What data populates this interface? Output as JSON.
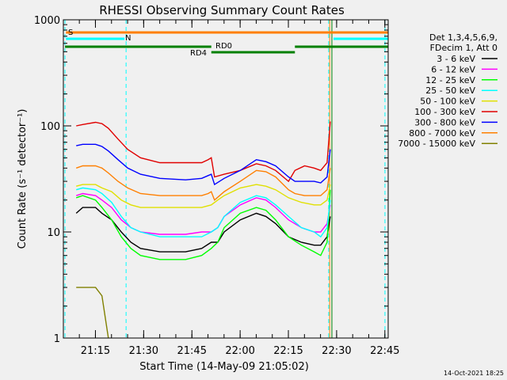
{
  "chart_data": {
    "type": "line",
    "title": "RHESSI Observing Summary Count Rates",
    "xlabel": "Start Time (14-May-09 21:05:02)",
    "ylabel": "Count Rate (s⁻¹ detector⁻¹)",
    "yscale": "log",
    "ylim": [
      1,
      1000
    ],
    "xlim_minutes_after_21_05_02": [
      0,
      101
    ],
    "x_tick_labels": [
      "21:15",
      "21:30",
      "21:45",
      "22:00",
      "22:15",
      "22:30",
      "22:45"
    ],
    "y_tick_labels": [
      "1",
      "10",
      "100",
      "1000"
    ],
    "legend_header": [
      "Det 1,3,4,5,6,9,",
      "FDecim 1, Att 0"
    ],
    "legend_position": "right",
    "timestamp": "14-Oct-2021 18:25",
    "state_bars": [
      {
        "label": "S",
        "color": "#ff7f00"
      },
      {
        "label": "N",
        "color": "#00ffff"
      },
      {
        "label": "RD0",
        "color": "#008000"
      },
      {
        "label": "RD4",
        "color": "#008000"
      }
    ],
    "series": [
      {
        "name": "3 - 6 keV",
        "color": "#000000",
        "points": [
          [
            4,
            15
          ],
          [
            6,
            17
          ],
          [
            10,
            17
          ],
          [
            12,
            15
          ],
          [
            15,
            13
          ],
          [
            18,
            10
          ],
          [
            21,
            8
          ],
          [
            24,
            7
          ],
          [
            30,
            6.5
          ],
          [
            38,
            6.5
          ],
          [
            43,
            7
          ],
          [
            46,
            8
          ],
          [
            48,
            8
          ],
          [
            50,
            10
          ],
          [
            55,
            13
          ],
          [
            60,
            15
          ],
          [
            63,
            14
          ],
          [
            66,
            12
          ],
          [
            70,
            9
          ],
          [
            74,
            8
          ],
          [
            78,
            7.5
          ],
          [
            80,
            7.5
          ],
          [
            82,
            9
          ],
          [
            83,
            14
          ]
        ]
      },
      {
        "name": "6 - 12 keV",
        "color": "#ff00ff",
        "points": [
          [
            4,
            22
          ],
          [
            6,
            23
          ],
          [
            10,
            22
          ],
          [
            12,
            20
          ],
          [
            15,
            17
          ],
          [
            18,
            13
          ],
          [
            21,
            11
          ],
          [
            24,
            10
          ],
          [
            30,
            9.5
          ],
          [
            38,
            9.5
          ],
          [
            43,
            10
          ],
          [
            46,
            10
          ],
          [
            48,
            11
          ],
          [
            50,
            14
          ],
          [
            55,
            18
          ],
          [
            60,
            21
          ],
          [
            63,
            20
          ],
          [
            66,
            17
          ],
          [
            70,
            13
          ],
          [
            74,
            11
          ],
          [
            78,
            10
          ],
          [
            80,
            10
          ],
          [
            82,
            12
          ],
          [
            83,
            18
          ]
        ]
      },
      {
        "name": "12 - 25 keV",
        "color": "#00ff00",
        "points": [
          [
            4,
            21
          ],
          [
            6,
            22
          ],
          [
            10,
            20
          ],
          [
            12,
            17
          ],
          [
            15,
            13
          ],
          [
            18,
            9
          ],
          [
            21,
            7
          ],
          [
            24,
            6
          ],
          [
            30,
            5.5
          ],
          [
            38,
            5.5
          ],
          [
            43,
            6
          ],
          [
            46,
            7
          ],
          [
            48,
            8
          ],
          [
            50,
            11
          ],
          [
            55,
            15
          ],
          [
            60,
            17
          ],
          [
            63,
            16
          ],
          [
            66,
            13
          ],
          [
            70,
            9
          ],
          [
            74,
            7.5
          ],
          [
            78,
            6.5
          ],
          [
            80,
            6
          ],
          [
            82,
            8
          ],
          [
            83,
            25
          ]
        ]
      },
      {
        "name": "25 - 50 keV",
        "color": "#00ffff",
        "points": [
          [
            4,
            25
          ],
          [
            6,
            26
          ],
          [
            10,
            25
          ],
          [
            12,
            23
          ],
          [
            15,
            19
          ],
          [
            18,
            14
          ],
          [
            21,
            11
          ],
          [
            24,
            10
          ],
          [
            30,
            9
          ],
          [
            38,
            9
          ],
          [
            43,
            9
          ],
          [
            46,
            10
          ],
          [
            48,
            11
          ],
          [
            50,
            14
          ],
          [
            55,
            19
          ],
          [
            60,
            22
          ],
          [
            63,
            21
          ],
          [
            66,
            18
          ],
          [
            70,
            14
          ],
          [
            74,
            11
          ],
          [
            78,
            10
          ],
          [
            80,
            9
          ],
          [
            82,
            11
          ],
          [
            83,
            20
          ]
        ]
      },
      {
        "name": "50 - 100 keV",
        "color": "#e0e000",
        "points": [
          [
            4,
            27
          ],
          [
            6,
            28
          ],
          [
            10,
            28
          ],
          [
            12,
            26
          ],
          [
            15,
            24
          ],
          [
            18,
            20
          ],
          [
            21,
            18
          ],
          [
            24,
            17
          ],
          [
            30,
            17
          ],
          [
            38,
            17
          ],
          [
            43,
            17
          ],
          [
            46,
            18
          ],
          [
            48,
            20
          ],
          [
            50,
            22
          ],
          [
            55,
            26
          ],
          [
            60,
            28
          ],
          [
            63,
            27
          ],
          [
            66,
            25
          ],
          [
            70,
            21
          ],
          [
            74,
            19
          ],
          [
            78,
            18
          ],
          [
            80,
            18
          ],
          [
            82,
            20
          ],
          [
            83,
            28
          ]
        ]
      },
      {
        "name": "100 - 300 keV",
        "color": "#e00000",
        "points": [
          [
            4,
            100
          ],
          [
            6,
            103
          ],
          [
            10,
            108
          ],
          [
            12,
            105
          ],
          [
            14,
            95
          ],
          [
            17,
            75
          ],
          [
            20,
            60
          ],
          [
            24,
            50
          ],
          [
            30,
            45
          ],
          [
            38,
            45
          ],
          [
            43,
            45
          ],
          [
            45,
            48
          ],
          [
            46,
            50
          ],
          [
            47,
            33
          ],
          [
            50,
            35
          ],
          [
            55,
            38
          ],
          [
            60,
            44
          ],
          [
            63,
            42
          ],
          [
            66,
            38
          ],
          [
            70,
            30
          ],
          [
            72,
            38
          ],
          [
            75,
            42
          ],
          [
            78,
            40
          ],
          [
            80,
            38
          ],
          [
            82,
            45
          ],
          [
            83,
            110
          ]
        ]
      },
      {
        "name": "300 - 800 keV",
        "color": "#0000ff",
        "points": [
          [
            4,
            65
          ],
          [
            6,
            67
          ],
          [
            10,
            67
          ],
          [
            12,
            64
          ],
          [
            14,
            58
          ],
          [
            17,
            48
          ],
          [
            20,
            40
          ],
          [
            24,
            35
          ],
          [
            30,
            32
          ],
          [
            38,
            31
          ],
          [
            43,
            32
          ],
          [
            45,
            34
          ],
          [
            46,
            35
          ],
          [
            47,
            28
          ],
          [
            50,
            32
          ],
          [
            55,
            38
          ],
          [
            60,
            48
          ],
          [
            63,
            46
          ],
          [
            66,
            42
          ],
          [
            70,
            33
          ],
          [
            72,
            30
          ],
          [
            75,
            30
          ],
          [
            78,
            30
          ],
          [
            80,
            29
          ],
          [
            82,
            33
          ],
          [
            83,
            60
          ]
        ]
      },
      {
        "name": "800 - 7000 keV",
        "color": "#ff7f00",
        "points": [
          [
            4,
            40
          ],
          [
            6,
            42
          ],
          [
            10,
            42
          ],
          [
            12,
            40
          ],
          [
            14,
            36
          ],
          [
            17,
            30
          ],
          [
            20,
            26
          ],
          [
            24,
            23
          ],
          [
            30,
            22
          ],
          [
            38,
            22
          ],
          [
            43,
            22
          ],
          [
            45,
            23
          ],
          [
            46,
            24
          ],
          [
            47,
            20
          ],
          [
            50,
            24
          ],
          [
            55,
            30
          ],
          [
            60,
            38
          ],
          [
            63,
            37
          ],
          [
            66,
            33
          ],
          [
            70,
            25
          ],
          [
            72,
            23
          ],
          [
            75,
            22
          ],
          [
            78,
            22
          ],
          [
            80,
            22
          ],
          [
            82,
            25
          ],
          [
            83,
            40
          ]
        ]
      },
      {
        "name": "7000 - 15000 keV",
        "color": "#808000",
        "points": [
          [
            4,
            3
          ],
          [
            10,
            3
          ],
          [
            12,
            2.5
          ],
          [
            14,
            1
          ]
        ]
      }
    ]
  }
}
